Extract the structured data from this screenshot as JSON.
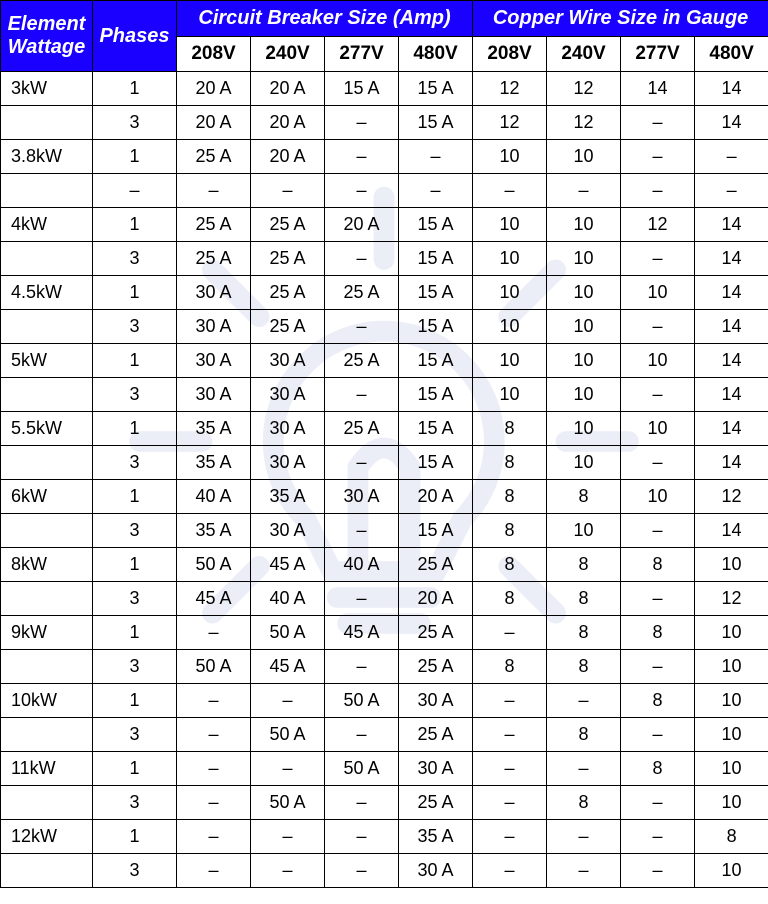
{
  "colors": {
    "header_bg": "#1900ff",
    "header_fg": "#ffffff",
    "border": "#000000",
    "background": "#ffffff",
    "watermark": "#b8bfe0"
  },
  "headers": {
    "wattage": "Element Wattage",
    "phases": "Phases",
    "breaker_group": "Circuit Breaker Size (Amp)",
    "wire_group": "Copper Wire Size in Gauge",
    "voltages": [
      "208V",
      "240V",
      "277V",
      "480V"
    ]
  },
  "rows": [
    {
      "wattage": "3kW",
      "phases": "1",
      "breaker": [
        "20 A",
        "20 A",
        "15 A",
        "15 A"
      ],
      "wire": [
        "12",
        "12",
        "14",
        "14"
      ]
    },
    {
      "wattage": "",
      "phases": "3",
      "breaker": [
        "20 A",
        "20 A",
        "–",
        "15 A"
      ],
      "wire": [
        "12",
        "12",
        "–",
        "14"
      ]
    },
    {
      "wattage": "3.8kW",
      "phases": "1",
      "breaker": [
        "25 A",
        "20 A",
        "–",
        "–"
      ],
      "wire": [
        "10",
        "10",
        "–",
        "–"
      ]
    },
    {
      "wattage": "",
      "phases": "–",
      "breaker": [
        "–",
        "–",
        "–",
        "–"
      ],
      "wire": [
        "–",
        "–",
        "–",
        "–"
      ]
    },
    {
      "wattage": "4kW",
      "phases": "1",
      "breaker": [
        "25 A",
        "25 A",
        "20 A",
        "15 A"
      ],
      "wire": [
        "10",
        "10",
        "12",
        "14"
      ]
    },
    {
      "wattage": "",
      "phases": "3",
      "breaker": [
        "25 A",
        "25 A",
        "–",
        "15 A"
      ],
      "wire": [
        "10",
        "10",
        "–",
        "14"
      ]
    },
    {
      "wattage": "4.5kW",
      "phases": "1",
      "breaker": [
        "30 A",
        "25 A",
        "25 A",
        "15 A"
      ],
      "wire": [
        "10",
        "10",
        "10",
        "14"
      ]
    },
    {
      "wattage": "",
      "phases": "3",
      "breaker": [
        "30 A",
        "25 A",
        "–",
        "15 A"
      ],
      "wire": [
        "10",
        "10",
        "–",
        "14"
      ]
    },
    {
      "wattage": "5kW",
      "phases": "1",
      "breaker": [
        "30 A",
        "30 A",
        "25 A",
        "15 A"
      ],
      "wire": [
        "10",
        "10",
        "10",
        "14"
      ]
    },
    {
      "wattage": "",
      "phases": "3",
      "breaker": [
        "30 A",
        "30 A",
        "–",
        "15 A"
      ],
      "wire": [
        "10",
        "10",
        "–",
        "14"
      ]
    },
    {
      "wattage": "5.5kW",
      "phases": "1",
      "breaker": [
        "35 A",
        "30 A",
        "25 A",
        "15 A"
      ],
      "wire": [
        "8",
        "10",
        "10",
        "14"
      ]
    },
    {
      "wattage": "",
      "phases": "3",
      "breaker": [
        "35 A",
        "30 A",
        "–",
        "15 A"
      ],
      "wire": [
        "8",
        "10",
        "–",
        "14"
      ]
    },
    {
      "wattage": "6kW",
      "phases": "1",
      "breaker": [
        "40 A",
        "35 A",
        "30 A",
        "20 A"
      ],
      "wire": [
        "8",
        "8",
        "10",
        "12"
      ]
    },
    {
      "wattage": "",
      "phases": "3",
      "breaker": [
        "35 A",
        "30 A",
        "–",
        "15 A"
      ],
      "wire": [
        "8",
        "10",
        "–",
        "14"
      ]
    },
    {
      "wattage": "8kW",
      "phases": "1",
      "breaker": [
        "50 A",
        "45 A",
        "40 A",
        "25 A"
      ],
      "wire": [
        "8",
        "8",
        "8",
        "10"
      ]
    },
    {
      "wattage": "",
      "phases": "3",
      "breaker": [
        "45 A",
        "40 A",
        "–",
        "20 A"
      ],
      "wire": [
        "8",
        "8",
        "–",
        "12"
      ]
    },
    {
      "wattage": "9kW",
      "phases": "1",
      "breaker": [
        "–",
        "50 A",
        "45 A",
        "25 A"
      ],
      "wire": [
        "–",
        "8",
        "8",
        "10"
      ]
    },
    {
      "wattage": "",
      "phases": "3",
      "breaker": [
        "50 A",
        "45 A",
        "–",
        "25 A"
      ],
      "wire": [
        "8",
        "8",
        "–",
        "10"
      ]
    },
    {
      "wattage": "10kW",
      "phases": "1",
      "breaker": [
        "–",
        "–",
        "50 A",
        "30 A"
      ],
      "wire": [
        "–",
        "–",
        "8",
        "10"
      ]
    },
    {
      "wattage": "",
      "phases": "3",
      "breaker": [
        "–",
        "50 A",
        "–",
        "25 A"
      ],
      "wire": [
        "–",
        "8",
        "–",
        "10"
      ]
    },
    {
      "wattage": "11kW",
      "phases": "1",
      "breaker": [
        "–",
        "–",
        "50 A",
        "30 A"
      ],
      "wire": [
        "–",
        "–",
        "8",
        "10"
      ]
    },
    {
      "wattage": "",
      "phases": "3",
      "breaker": [
        "–",
        "50 A",
        "–",
        "25 A"
      ],
      "wire": [
        "–",
        "8",
        "–",
        "10"
      ]
    },
    {
      "wattage": "12kW",
      "phases": "1",
      "breaker": [
        "–",
        "–",
        "–",
        "35 A"
      ],
      "wire": [
        "–",
        "–",
        "–",
        "8"
      ]
    },
    {
      "wattage": "",
      "phases": "3",
      "breaker": [
        "–",
        "–",
        "–",
        "30 A"
      ],
      "wire": [
        "–",
        "–",
        "–",
        "10"
      ]
    }
  ]
}
